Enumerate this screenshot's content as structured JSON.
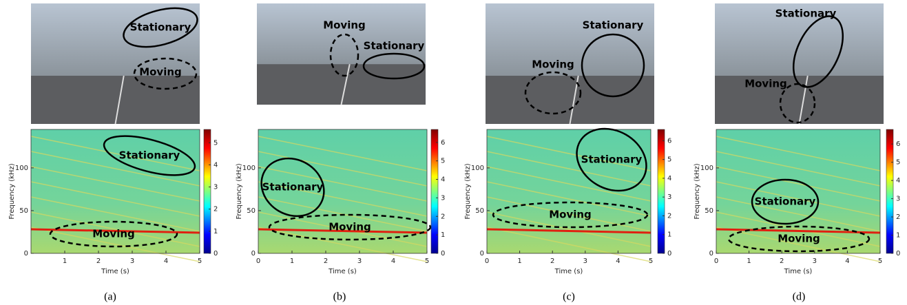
{
  "panels": [
    {
      "caption": "(a)",
      "photo_labels": [
        "Stationary",
        "Moving"
      ],
      "spectrogram": {
        "xlabel": "Time (s)",
        "ylabel": "Frequency (kHz)",
        "xlim": [
          0,
          5
        ],
        "xticks": [
          1,
          2,
          3,
          4,
          5
        ],
        "ylim": [
          0,
          145
        ],
        "yticks": [
          0,
          50,
          100
        ],
        "labels": [
          "Stationary",
          "Moving"
        ],
        "colorbar": {
          "lim": [
            0,
            5.6
          ],
          "ticks": [
            0,
            1,
            2,
            3,
            4,
            5
          ]
        }
      }
    },
    {
      "caption": "(b)",
      "photo_labels": [
        "Moving",
        "Stationary"
      ],
      "spectrogram": {
        "xlabel": "Time (s)",
        "ylabel": "Frequency (kHz)",
        "xlim": [
          0,
          5
        ],
        "xticks": [
          0,
          1,
          2,
          3,
          4,
          5
        ],
        "ylim": [
          0,
          145
        ],
        "yticks": [
          0,
          50,
          100
        ],
        "labels": [
          "Stationary",
          "Moving"
        ],
        "colorbar": {
          "lim": [
            0,
            6.7
          ],
          "ticks": [
            0,
            1,
            2,
            3,
            4,
            5,
            6
          ]
        }
      }
    },
    {
      "caption": "(c)",
      "photo_labels": [
        "Stationary",
        "Moving"
      ],
      "spectrogram": {
        "xlabel": "Time (s)",
        "ylabel": "Frequency (kHz)",
        "xlim": [
          0,
          5
        ],
        "xticks": [
          0,
          1,
          2,
          3,
          4,
          5
        ],
        "ylim": [
          0,
          145
        ],
        "yticks": [
          0,
          50,
          100
        ],
        "labels": [
          "Stationary",
          "Moving"
        ],
        "colorbar": {
          "lim": [
            0,
            6.6
          ],
          "ticks": [
            0,
            1,
            2,
            3,
            4,
            5,
            6
          ]
        }
      }
    },
    {
      "caption": "(d)",
      "photo_labels": [
        "Stationary",
        "Moving"
      ],
      "spectrogram": {
        "xlabel": "Time (s)",
        "ylabel": "Frequency (kHz)",
        "xlim": [
          0,
          5
        ],
        "xticks": [
          0,
          1,
          2,
          3,
          4,
          5
        ],
        "ylim": [
          0,
          145
        ],
        "yticks": [
          0,
          50,
          100
        ],
        "labels": [
          "Stationary",
          "Moving"
        ],
        "colorbar": {
          "lim": [
            0,
            6.8
          ],
          "ticks": [
            0,
            1,
            2,
            3,
            4,
            5,
            6
          ]
        }
      }
    }
  ]
}
